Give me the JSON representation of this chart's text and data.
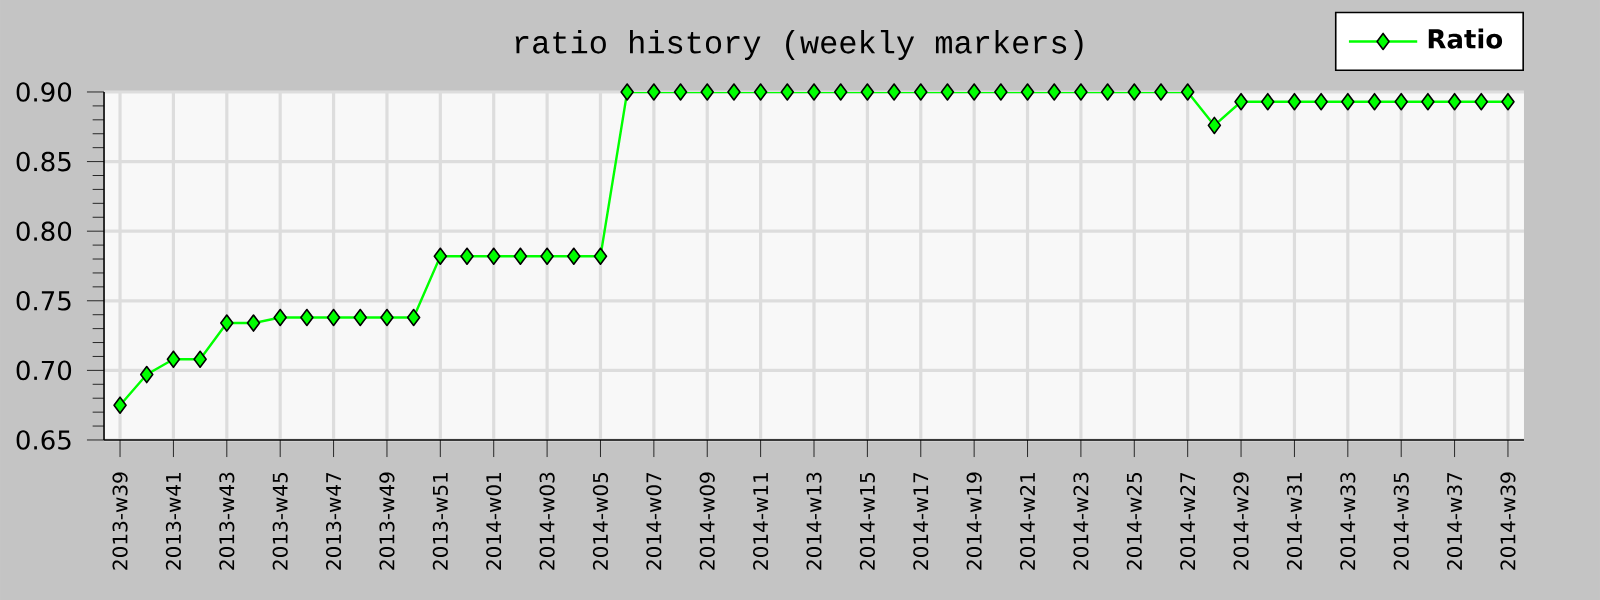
{
  "chart_data": {
    "type": "line",
    "title": "ratio history (weekly markers)",
    "categories": [
      "2013-w39",
      null,
      "2013-w41",
      null,
      "2013-w43",
      null,
      "2013-w45",
      null,
      "2013-w47",
      null,
      "2013-w49",
      null,
      "2013-w51",
      null,
      "2014-w01",
      null,
      "2014-w03",
      null,
      "2014-w05",
      null,
      "2014-w07",
      null,
      "2014-w09",
      null,
      "2014-w11",
      null,
      "2014-w13",
      null,
      "2014-w15",
      null,
      "2014-w17",
      null,
      "2014-w19",
      null,
      "2014-w21",
      null,
      "2014-w23",
      null,
      "2014-w25",
      null,
      "2014-w27",
      null,
      "2014-w29",
      null,
      "2014-w31",
      null,
      "2014-w33",
      null,
      "2014-w35",
      null,
      "2014-w37",
      null,
      "2014-w39"
    ],
    "series": [
      {
        "name": "Ratio",
        "color": "#00ff00",
        "values": [
          0.675,
          0.697,
          0.708,
          0.708,
          0.734,
          0.734,
          0.738,
          0.738,
          0.738,
          0.738,
          0.738,
          0.738,
          0.782,
          0.782,
          0.782,
          0.782,
          0.782,
          0.782,
          0.782,
          0.9,
          0.9,
          0.9,
          0.9,
          0.9,
          0.9,
          0.9,
          0.9,
          0.9,
          0.9,
          0.9,
          0.9,
          0.9,
          0.9,
          0.9,
          0.9,
          0.9,
          0.9,
          0.9,
          0.9,
          0.9,
          0.9,
          0.876,
          0.893,
          0.893,
          0.893,
          0.893,
          0.893,
          0.893,
          0.893,
          0.893,
          0.893,
          0.893,
          0.893
        ]
      }
    ],
    "ylim": [
      0.65,
      0.9
    ],
    "yticks": [
      {
        "value": 0.65,
        "label": "0.65"
      },
      {
        "value": 0.7,
        "label": "0.70"
      },
      {
        "value": 0.75,
        "label": "0.75"
      },
      {
        "value": 0.8,
        "label": "0.80"
      },
      {
        "value": 0.85,
        "label": "0.85"
      },
      {
        "value": 0.9,
        "label": "0.90"
      }
    ],
    "grid": true,
    "legend": "top right",
    "marker": "diamond",
    "line_style": "solid"
  }
}
